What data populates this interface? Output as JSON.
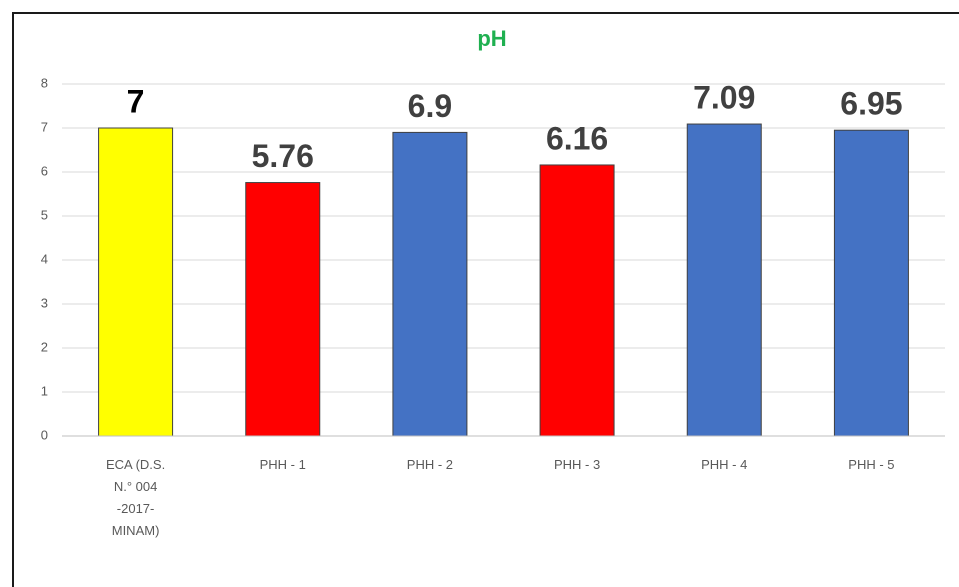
{
  "chart_data": {
    "type": "bar",
    "title": "pH",
    "categories": [
      "ECA (D.S. N.° 004 -2017- MINAM)",
      "PHH - 1",
      "PHH - 2",
      "PHH - 3",
      "PHH - 4",
      "PHH - 5"
    ],
    "values": [
      7,
      5.76,
      6.9,
      6.16,
      7.09,
      6.95
    ],
    "colors": [
      "#ffff00",
      "#ff0000",
      "#4472c4",
      "#ff0000",
      "#4472c4",
      "#4472c4"
    ],
    "label_colors": [
      "#000000",
      "#404040",
      "#404040",
      "#404040",
      "#404040",
      "#404040"
    ],
    "ylim": [
      0,
      8
    ],
    "yticks": [
      0,
      1,
      2,
      3,
      4,
      5,
      6,
      7,
      8
    ],
    "grid": true
  }
}
